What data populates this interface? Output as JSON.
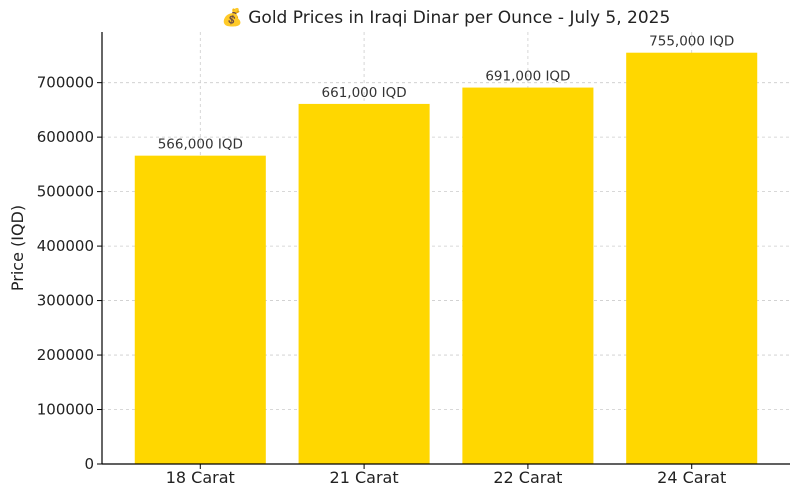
{
  "chart_data": {
    "type": "bar",
    "title": "💰 Gold Prices in Iraqi Dinar per Ounce - July 5, 2025",
    "xlabel": "",
    "ylabel": "Price (IQD)",
    "categories": [
      "18 Carat",
      "21 Carat",
      "22 Carat",
      "24 Carat"
    ],
    "values": [
      566000,
      661000,
      691000,
      755000
    ],
    "data_labels": [
      "566,000 IQD",
      "661,000 IQD",
      "691,000 IQD",
      "755,000 IQD"
    ],
    "ylim": [
      0,
      793000
    ],
    "yticks": [
      0,
      100000,
      200000,
      300000,
      400000,
      500000,
      600000,
      700000
    ],
    "ytick_labels": [
      "0",
      "100000",
      "200000",
      "300000",
      "400000",
      "500000",
      "600000",
      "700000"
    ],
    "grid": true,
    "bar_color": "#FFD700"
  }
}
